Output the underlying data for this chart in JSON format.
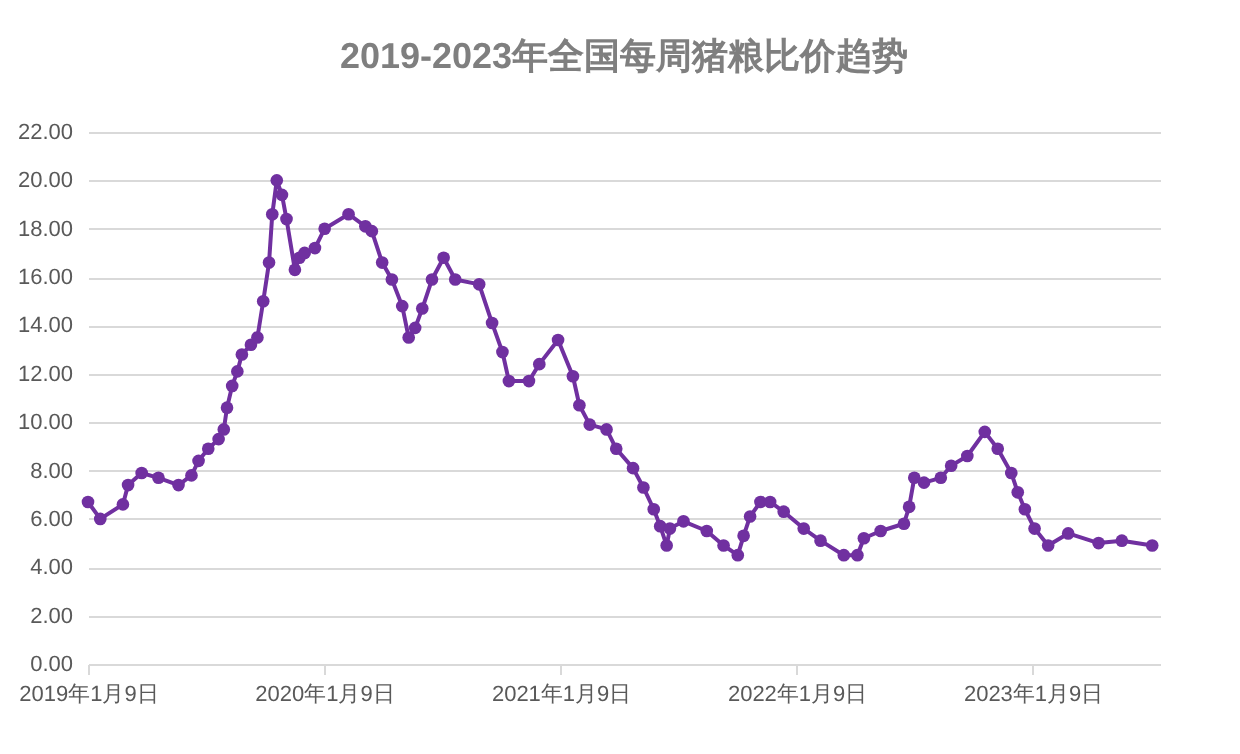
{
  "chart_data": {
    "type": "line",
    "title": "2019-2023年全国每周猪粮比价趋势",
    "x": [
      "2019-01-09",
      "2019-01-28",
      "2019-03-04",
      "2019-03-12",
      "2019-04-02",
      "2019-04-28",
      "2019-05-29",
      "2019-06-18",
      "2019-06-29",
      "2019-07-14",
      "2019-07-30",
      "2019-08-07",
      "2019-08-12",
      "2019-08-20",
      "2019-08-28",
      "2019-09-04",
      "2019-09-18",
      "2019-09-28",
      "2019-10-07",
      "2019-10-16",
      "2019-10-21",
      "2019-10-28",
      "2019-11-05",
      "2019-11-12",
      "2019-11-25",
      "2019-12-02",
      "2019-12-10",
      "2019-12-26",
      "2020-01-10",
      "2020-02-16",
      "2020-03-13",
      "2020-03-23",
      "2020-04-08",
      "2020-04-23",
      "2020-05-09",
      "2020-05-19",
      "2020-05-29",
      "2020-06-09",
      "2020-06-24",
      "2020-07-12",
      "2020-07-30",
      "2020-09-05",
      "2020-09-25",
      "2020-10-11",
      "2020-10-21",
      "2020-11-21",
      "2020-12-07",
      "2021-01-05",
      "2021-01-28",
      "2021-02-07",
      "2021-02-23",
      "2021-03-21",
      "2021-04-05",
      "2021-05-01",
      "2021-05-17",
      "2021-06-02",
      "2021-06-12",
      "2021-06-22",
      "2021-06-27",
      "2021-07-18",
      "2021-08-23",
      "2021-09-18",
      "2021-10-10",
      "2021-10-19",
      "2021-10-29",
      "2021-11-14",
      "2021-11-29",
      "2021-12-20",
      "2022-01-20",
      "2022-02-15",
      "2022-03-23",
      "2022-04-13",
      "2022-04-23",
      "2022-05-19",
      "2022-06-24",
      "2022-07-02",
      "2022-07-10",
      "2022-07-25",
      "2022-08-20",
      "2022-09-05",
      "2022-09-30",
      "2022-10-27",
      "2022-11-16",
      "2022-12-07",
      "2022-12-17",
      "2022-12-28",
      "2023-01-12",
      "2023-02-02",
      "2023-03-05",
      "2023-04-21",
      "2023-05-27",
      "2023-07-13"
    ],
    "series": [
      {
        "color": "#7030a0",
        "values": [
          6.7,
          6.0,
          6.6,
          7.4,
          7.9,
          7.7,
          7.4,
          7.8,
          8.4,
          8.9,
          9.3,
          9.7,
          10.6,
          11.5,
          12.1,
          12.8,
          13.2,
          13.5,
          15.0,
          16.6,
          18.6,
          20.0,
          19.4,
          18.4,
          16.3,
          16.8,
          17.0,
          17.2,
          18.0,
          18.6,
          18.1,
          17.9,
          16.6,
          15.9,
          14.8,
          13.5,
          13.9,
          14.7,
          15.9,
          16.8,
          15.9,
          15.7,
          14.1,
          12.9,
          11.7,
          11.7,
          12.4,
          13.4,
          11.9,
          10.7,
          9.9,
          9.7,
          8.9,
          8.1,
          7.3,
          6.4,
          5.7,
          4.9,
          5.6,
          5.9,
          5.5,
          4.9,
          4.5,
          5.3,
          6.1,
          6.7,
          6.7,
          6.3,
          5.6,
          5.1,
          4.5,
          4.5,
          5.2,
          5.5,
          5.8,
          6.5,
          7.7,
          7.5,
          7.7,
          8.2,
          8.6,
          9.6,
          8.9,
          7.9,
          7.1,
          6.4,
          5.6,
          4.9,
          5.4,
          5.0,
          5.1,
          4.9
        ]
      }
    ],
    "xlim": [
      "2019-01-09",
      "2023-07-25"
    ],
    "xticks": [
      {
        "value": "2019-01-09",
        "label": "2019年1月9日"
      },
      {
        "value": "2020-01-09",
        "label": "2020年1月9日"
      },
      {
        "value": "2021-01-09",
        "label": "2021年1月9日"
      },
      {
        "value": "2022-01-09",
        "label": "2022年1月9日"
      },
      {
        "value": "2023-01-09",
        "label": "2023年1月9日"
      }
    ],
    "ylim": [
      0,
      22
    ],
    "yticks": [
      {
        "value": 0,
        "label": "0.00"
      },
      {
        "value": 2,
        "label": "2.00"
      },
      {
        "value": 4,
        "label": "4.00"
      },
      {
        "value": 6,
        "label": "6.00"
      },
      {
        "value": 8,
        "label": "8.00"
      },
      {
        "value": 10,
        "label": "10.00"
      },
      {
        "value": 12,
        "label": "12.00"
      },
      {
        "value": 14,
        "label": "14.00"
      },
      {
        "value": 16,
        "label": "16.00"
      },
      {
        "value": 18,
        "label": "18.00"
      },
      {
        "value": 20,
        "label": "20.00"
      },
      {
        "value": 22,
        "label": "22.00"
      }
    ],
    "grid": "y",
    "marker": "circle"
  }
}
